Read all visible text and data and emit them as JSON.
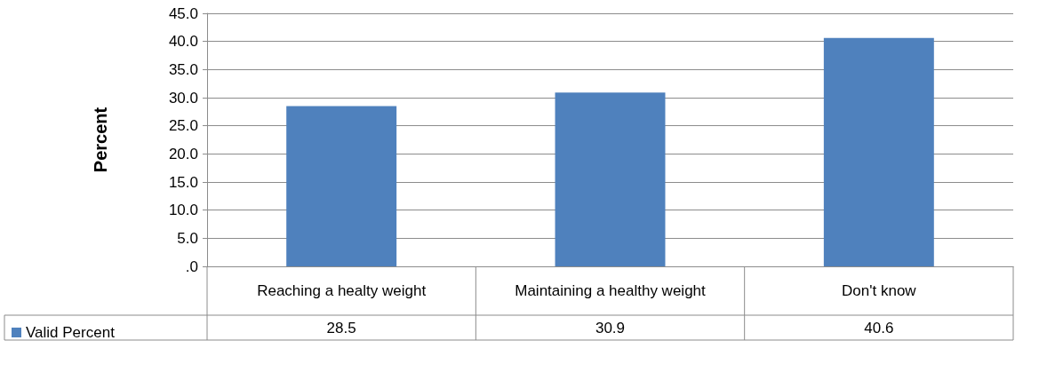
{
  "chart_data": {
    "type": "bar",
    "ylabel": "Percent",
    "categories": [
      "Reaching a healty weight",
      "Maintaining a healthy weight",
      "Don't know"
    ],
    "series": [
      {
        "name": "Valid Percent",
        "color": "#4f81bd",
        "values": [
          28.5,
          30.9,
          40.6
        ]
      }
    ],
    "ylim": [
      0,
      45
    ],
    "yticks": [
      {
        "value": 0,
        "label": ".0"
      },
      {
        "value": 5,
        "label": "5.0"
      },
      {
        "value": 10,
        "label": "10.0"
      },
      {
        "value": 15,
        "label": "15.0"
      },
      {
        "value": 20,
        "label": "20.0"
      },
      {
        "value": 25,
        "label": "25.0"
      },
      {
        "value": 30,
        "label": "30.0"
      },
      {
        "value": 35,
        "label": "35.0"
      },
      {
        "value": 40,
        "label": "40.0"
      },
      {
        "value": 45,
        "label": "45.0"
      }
    ],
    "grid": "y",
    "legend": "bottom left",
    "data_labels": true
  }
}
